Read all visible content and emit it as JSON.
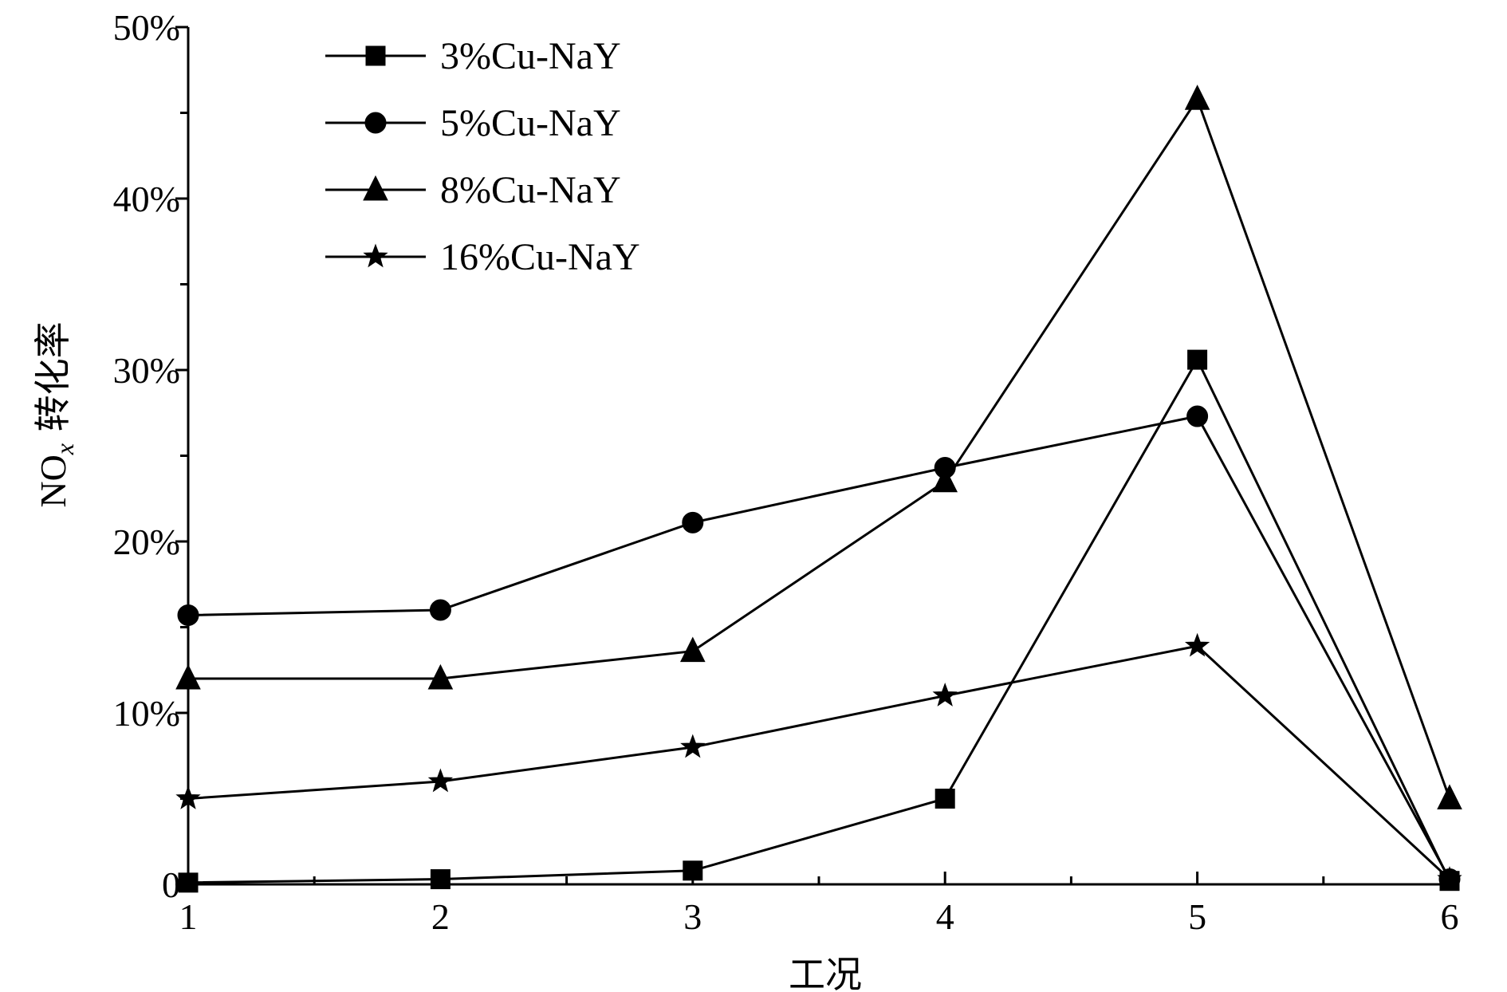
{
  "chart_data": {
    "type": "line",
    "xlabel": "工况",
    "ylabel_main": "NO",
    "ylabel_sub": "x",
    "ylabel_tail": " 转化率",
    "x": [
      1,
      2,
      3,
      4,
      5,
      6
    ],
    "x_tick_labels": [
      "1",
      "2",
      "3",
      "4",
      "5",
      "6"
    ],
    "xlim": [
      1,
      6
    ],
    "ylim": [
      0,
      50
    ],
    "y_tick_labels": [
      "0",
      "10%",
      "20%",
      "30%",
      "40%",
      "50%"
    ],
    "y_ticks": [
      0,
      10,
      20,
      30,
      40,
      50
    ],
    "grid": false,
    "legend_position": "top-left",
    "series": [
      {
        "name": "3%Cu-NaY",
        "marker": "square",
        "values": [
          0.1,
          0.3,
          0.8,
          5.0,
          30.6,
          0.2
        ]
      },
      {
        "name": "5%Cu-NaY",
        "marker": "circle",
        "values": [
          15.7,
          16.0,
          21.1,
          24.3,
          27.3,
          0.3
        ]
      },
      {
        "name": "8%Cu-NaY",
        "marker": "triangle",
        "values": [
          12.0,
          12.0,
          13.6,
          23.5,
          45.8,
          5.0
        ]
      },
      {
        "name": "16%Cu-NaY",
        "marker": "star",
        "values": [
          5.0,
          6.0,
          8.0,
          11.0,
          13.9,
          0.3
        ]
      }
    ]
  }
}
